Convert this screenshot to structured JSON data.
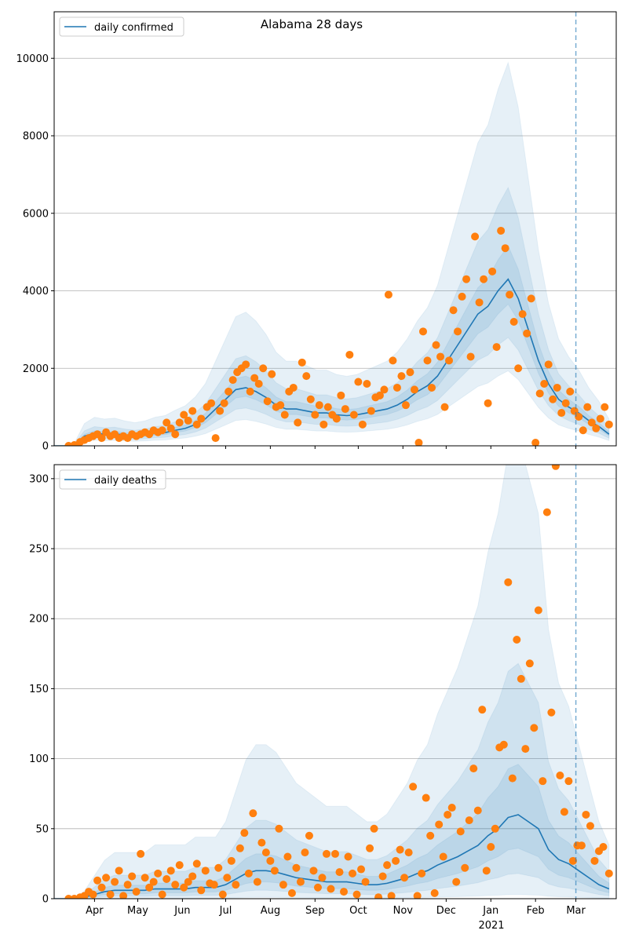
{
  "chart_data": [
    {
      "type": "line",
      "title": "Alabama 28 days",
      "legend": "daily confirmed",
      "legend_position": "top-left",
      "xlabel": "",
      "ylabel": "",
      "x_start_date": "2020-03-04",
      "xlim_days": [
        0,
        390
      ],
      "ylim": [
        0,
        11200
      ],
      "yticks": [
        0,
        2000,
        4000,
        6000,
        8000,
        10000
      ],
      "ytick_labels": [
        "0",
        "2000",
        "4000",
        "6000",
        "8000",
        "10000"
      ],
      "grid": true,
      "vline_day": 362,
      "model_days_step": 7,
      "model": [
        0,
        0,
        30,
        250,
        320,
        300,
        310,
        280,
        260,
        280,
        320,
        340,
        400,
        450,
        550,
        700,
        950,
        1200,
        1450,
        1500,
        1400,
        1250,
        1050,
        950,
        950,
        900,
        850,
        850,
        800,
        780,
        800,
        850,
        900,
        950,
        1050,
        1200,
        1400,
        1550,
        1800,
        2200,
        2600,
        3000,
        3400,
        3600,
        4000,
        4300,
        3800,
        3000,
        2200,
        1600,
        1200,
        1000,
        850,
        650,
        500,
        300
      ],
      "band_factors": [
        [
          0.45,
          2.3
        ],
        [
          0.65,
          1.55
        ],
        [
          0.85,
          1.2
        ]
      ],
      "observed": [
        [
          10,
          0
        ],
        [
          14,
          20
        ],
        [
          18,
          100
        ],
        [
          21,
          150
        ],
        [
          24,
          200
        ],
        [
          27,
          250
        ],
        [
          30,
          300
        ],
        [
          33,
          200
        ],
        [
          36,
          350
        ],
        [
          39,
          250
        ],
        [
          42,
          300
        ],
        [
          45,
          200
        ],
        [
          48,
          250
        ],
        [
          51,
          200
        ],
        [
          54,
          300
        ],
        [
          57,
          250
        ],
        [
          60,
          300
        ],
        [
          63,
          350
        ],
        [
          66,
          300
        ],
        [
          69,
          400
        ],
        [
          72,
          350
        ],
        [
          75,
          400
        ],
        [
          78,
          600
        ],
        [
          81,
          450
        ],
        [
          84,
          300
        ],
        [
          87,
          600
        ],
        [
          90,
          800
        ],
        [
          93,
          650
        ],
        [
          96,
          900
        ],
        [
          99,
          550
        ],
        [
          102,
          700
        ],
        [
          106,
          1000
        ],
        [
          109,
          1100
        ],
        [
          112,
          200
        ],
        [
          115,
          900
        ],
        [
          118,
          1100
        ],
        [
          121,
          1400
        ],
        [
          124,
          1700
        ],
        [
          127,
          1900
        ],
        [
          130,
          2000
        ],
        [
          133,
          2100
        ],
        [
          136,
          1400
        ],
        [
          139,
          1750
        ],
        [
          142,
          1600
        ],
        [
          145,
          2000
        ],
        [
          148,
          1150
        ],
        [
          151,
          1850
        ],
        [
          154,
          1000
        ],
        [
          157,
          1050
        ],
        [
          160,
          800
        ],
        [
          163,
          1400
        ],
        [
          166,
          1500
        ],
        [
          169,
          600
        ],
        [
          172,
          2150
        ],
        [
          175,
          1800
        ],
        [
          178,
          1200
        ],
        [
          181,
          800
        ],
        [
          184,
          1050
        ],
        [
          187,
          550
        ],
        [
          190,
          1000
        ],
        [
          193,
          800
        ],
        [
          196,
          700
        ],
        [
          199,
          1300
        ],
        [
          202,
          950
        ],
        [
          205,
          2350
        ],
        [
          208,
          800
        ],
        [
          211,
          1650
        ],
        [
          214,
          550
        ],
        [
          217,
          1600
        ],
        [
          220,
          900
        ],
        [
          223,
          1250
        ],
        [
          226,
          1300
        ],
        [
          229,
          1450
        ],
        [
          232,
          3900
        ],
        [
          235,
          2200
        ],
        [
          238,
          1500
        ],
        [
          241,
          1800
        ],
        [
          244,
          1050
        ],
        [
          247,
          1900
        ],
        [
          250,
          1450
        ],
        [
          253,
          80
        ],
        [
          256,
          2950
        ],
        [
          259,
          2200
        ],
        [
          262,
          1500
        ],
        [
          265,
          2600
        ],
        [
          268,
          2300
        ],
        [
          271,
          1000
        ],
        [
          274,
          2200
        ],
        [
          277,
          3500
        ],
        [
          280,
          2950
        ],
        [
          283,
          3850
        ],
        [
          286,
          4300
        ],
        [
          289,
          2300
        ],
        [
          292,
          5400
        ],
        [
          295,
          3700
        ],
        [
          298,
          4300
        ],
        [
          301,
          1100
        ],
        [
          304,
          4500
        ],
        [
          307,
          2550
        ],
        [
          310,
          5550
        ],
        [
          313,
          5100
        ],
        [
          316,
          3900
        ],
        [
          319,
          3200
        ],
        [
          322,
          2000
        ],
        [
          325,
          3400
        ],
        [
          328,
          2900
        ],
        [
          331,
          3800
        ],
        [
          334,
          80
        ],
        [
          337,
          1350
        ],
        [
          340,
          1600
        ],
        [
          343,
          2100
        ],
        [
          346,
          1200
        ],
        [
          349,
          1500
        ],
        [
          352,
          850
        ],
        [
          355,
          1100
        ],
        [
          358,
          1400
        ],
        [
          361,
          900
        ],
        [
          364,
          750
        ],
        [
          367,
          400
        ],
        [
          370,
          1000
        ],
        [
          373,
          600
        ],
        [
          376,
          450
        ],
        [
          379,
          700
        ],
        [
          382,
          1000
        ],
        [
          385,
          550
        ]
      ]
    },
    {
      "type": "line",
      "title": "",
      "legend": "daily deaths",
      "legend_position": "top-left",
      "xlabel": "",
      "ylabel": "",
      "x_start_date": "2020-03-04",
      "xlim_days": [
        0,
        390
      ],
      "ylim": [
        0,
        310
      ],
      "yticks": [
        0,
        50,
        100,
        150,
        200,
        250,
        300
      ],
      "ytick_labels": [
        "0",
        "50",
        "100",
        "150",
        "200",
        "250",
        "300"
      ],
      "grid": true,
      "vline_day": 362,
      "xtick_days": [
        28,
        58,
        89,
        119,
        150,
        181,
        211,
        242,
        272,
        303,
        334,
        362
      ],
      "xtick_labels": [
        "Apr",
        "May",
        "Jun",
        "Jul",
        "Aug",
        "Sep",
        "Oct",
        "Nov",
        "Dec",
        "Jan",
        "Feb",
        "Mar"
      ],
      "year_label": "2021",
      "model_days_step": 7,
      "model": [
        0,
        0,
        0,
        1,
        3,
        5,
        6,
        6,
        6,
        6,
        7,
        7,
        7,
        7,
        8,
        8,
        8,
        10,
        14,
        18,
        20,
        20,
        19,
        17,
        15,
        14,
        13,
        12,
        12,
        12,
        11,
        10,
        10,
        11,
        13,
        15,
        18,
        20,
        24,
        27,
        30,
        34,
        38,
        45,
        50,
        58,
        60,
        55,
        50,
        35,
        28,
        25,
        20,
        15,
        10,
        7
      ],
      "band_factors": [
        [
          0.05,
          5.5
        ],
        [
          0.3,
          2.8
        ],
        [
          0.6,
          1.6
        ]
      ],
      "observed": [
        [
          10,
          0
        ],
        [
          14,
          0
        ],
        [
          18,
          1
        ],
        [
          21,
          2
        ],
        [
          24,
          5
        ],
        [
          27,
          3
        ],
        [
          30,
          13
        ],
        [
          33,
          8
        ],
        [
          36,
          15
        ],
        [
          39,
          3
        ],
        [
          42,
          12
        ],
        [
          45,
          20
        ],
        [
          48,
          2
        ],
        [
          51,
          10
        ],
        [
          54,
          16
        ],
        [
          57,
          5
        ],
        [
          60,
          32
        ],
        [
          63,
          15
        ],
        [
          66,
          8
        ],
        [
          69,
          12
        ],
        [
          72,
          18
        ],
        [
          75,
          3
        ],
        [
          78,
          14
        ],
        [
          81,
          20
        ],
        [
          84,
          10
        ],
        [
          87,
          24
        ],
        [
          90,
          8
        ],
        [
          93,
          12
        ],
        [
          96,
          16
        ],
        [
          99,
          25
        ],
        [
          102,
          6
        ],
        [
          105,
          20
        ],
        [
          108,
          11
        ],
        [
          111,
          10
        ],
        [
          114,
          22
        ],
        [
          117,
          3
        ],
        [
          120,
          15
        ],
        [
          123,
          27
        ],
        [
          126,
          10
        ],
        [
          129,
          36
        ],
        [
          132,
          47
        ],
        [
          135,
          18
        ],
        [
          138,
          61
        ],
        [
          141,
          12
        ],
        [
          144,
          40
        ],
        [
          147,
          33
        ],
        [
          150,
          27
        ],
        [
          153,
          20
        ],
        [
          156,
          50
        ],
        [
          159,
          10
        ],
        [
          162,
          30
        ],
        [
          165,
          4
        ],
        [
          168,
          22
        ],
        [
          171,
          12
        ],
        [
          174,
          33
        ],
        [
          177,
          45
        ],
        [
          180,
          20
        ],
        [
          183,
          8
        ],
        [
          186,
          15
        ],
        [
          189,
          32
        ],
        [
          192,
          7
        ],
        [
          195,
          32
        ],
        [
          198,
          19
        ],
        [
          201,
          5
        ],
        [
          204,
          30
        ],
        [
          207,
          18
        ],
        [
          210,
          3
        ],
        [
          213,
          21
        ],
        [
          216,
          12
        ],
        [
          219,
          36
        ],
        [
          222,
          50
        ],
        [
          225,
          1
        ],
        [
          228,
          16
        ],
        [
          231,
          24
        ],
        [
          234,
          2
        ],
        [
          237,
          27
        ],
        [
          240,
          35
        ],
        [
          243,
          15
        ],
        [
          246,
          33
        ],
        [
          249,
          80
        ],
        [
          252,
          2
        ],
        [
          255,
          18
        ],
        [
          258,
          72
        ],
        [
          261,
          45
        ],
        [
          264,
          4
        ],
        [
          267,
          53
        ],
        [
          270,
          30
        ],
        [
          273,
          60
        ],
        [
          276,
          65
        ],
        [
          279,
          12
        ],
        [
          282,
          48
        ],
        [
          285,
          22
        ],
        [
          288,
          56
        ],
        [
          291,
          93
        ],
        [
          294,
          63
        ],
        [
          297,
          135
        ],
        [
          300,
          20
        ],
        [
          303,
          37
        ],
        [
          306,
          50
        ],
        [
          309,
          108
        ],
        [
          312,
          110
        ],
        [
          315,
          226
        ],
        [
          318,
          86
        ],
        [
          321,
          185
        ],
        [
          324,
          157
        ],
        [
          327,
          107
        ],
        [
          330,
          168
        ],
        [
          333,
          122
        ],
        [
          336,
          206
        ],
        [
          339,
          84
        ],
        [
          342,
          276
        ],
        [
          345,
          133
        ],
        [
          348,
          309
        ],
        [
          351,
          88
        ],
        [
          354,
          62
        ],
        [
          357,
          84
        ],
        [
          360,
          27
        ],
        [
          363,
          38
        ],
        [
          366,
          38
        ],
        [
          369,
          60
        ],
        [
          372,
          52
        ],
        [
          375,
          27
        ],
        [
          378,
          34
        ],
        [
          381,
          37
        ],
        [
          385,
          18
        ]
      ]
    }
  ],
  "colors": {
    "model": "#1f77b4",
    "observed": "#ff7f0e",
    "grid": "#b0b0b0"
  }
}
